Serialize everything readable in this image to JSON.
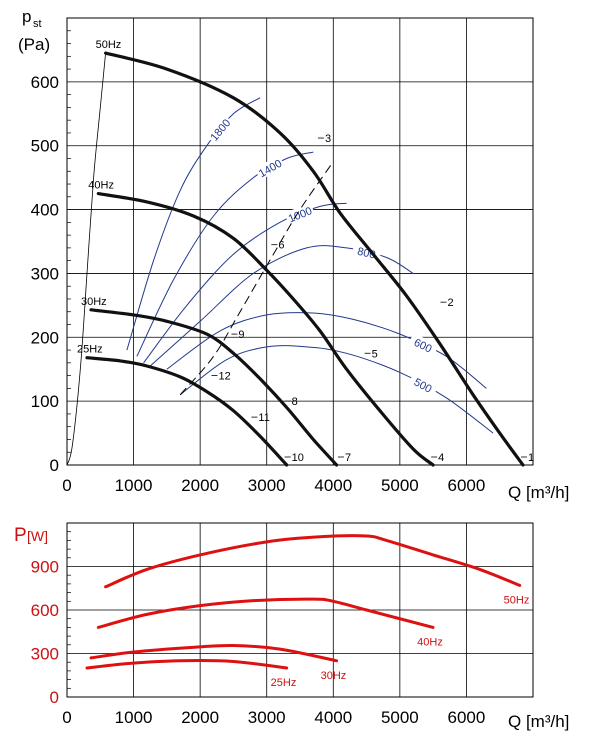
{
  "chart_data": [
    {
      "type": "line",
      "ylabel_main": "p",
      "ylabel_sub": "st",
      "ylabel_unit": "(Pa)",
      "xlabel": "Q [m³/h]",
      "xlim": [
        0,
        7000
      ],
      "ylim": [
        0,
        700
      ],
      "x_ticks": [
        "0",
        "1000",
        "2000",
        "3000",
        "4000",
        "5000",
        "6000"
      ],
      "y_ticks": [
        "0",
        "100",
        "200",
        "300",
        "400",
        "500",
        "600"
      ],
      "y_tick_values": [
        0,
        100,
        200,
        300,
        400,
        500,
        600
      ],
      "x_tick_values": [
        0,
        1000,
        2000,
        3000,
        4000,
        5000,
        6000
      ],
      "grid": true,
      "fan_curves": [
        {
          "name": "50Hz",
          "x": [
            580,
            1500,
            2500,
            3200,
            3700,
            4100,
            4600,
            5100,
            5600,
            6100,
            6500,
            6850
          ],
          "y": [
            645,
            620,
            575,
            520,
            460,
            395,
            330,
            265,
            190,
            110,
            50,
            0
          ]
        },
        {
          "name": "40Hz",
          "x": [
            470,
            1200,
            1900,
            2500,
            3000,
            3400,
            3800,
            4200,
            4700,
            5200,
            5500
          ],
          "y": [
            425,
            412,
            390,
            355,
            305,
            260,
            210,
            150,
            85,
            25,
            0
          ]
        },
        {
          "name": "30Hz",
          "x": [
            360,
            1000,
            1500,
            2100,
            2500,
            2900,
            3300,
            3700,
            4050
          ],
          "y": [
            243,
            235,
            225,
            205,
            175,
            135,
            90,
            40,
            0
          ]
        },
        {
          "name": "25Hz",
          "x": [
            300,
            800,
            1200,
            1700,
            2100,
            2500,
            2900,
            3300
          ],
          "y": [
            168,
            163,
            155,
            138,
            115,
            85,
            45,
            0
          ]
        }
      ],
      "system_curve_left": {
        "x": [
          0,
          80,
          200,
          300,
          400,
          500,
          580
        ],
        "y": [
          0,
          30,
          150,
          300,
          450,
          560,
          645
        ]
      },
      "system_curve_dashed": {
        "x": [
          1700,
          2200,
          2600,
          3100,
          3500,
          4000
        ],
        "y": [
          110,
          170,
          240,
          330,
          400,
          475
        ]
      },
      "iso_curves": [
        {
          "label": "1800",
          "x": [
            900,
            1300,
            1700,
            2100,
            2500,
            2900
          ],
          "y": [
            180,
            320,
            430,
            500,
            550,
            575
          ]
        },
        {
          "label": "1400",
          "x": [
            1050,
            1600,
            2200,
            2800,
            3300,
            3700
          ],
          "y": [
            170,
            290,
            390,
            450,
            480,
            490
          ]
        },
        {
          "label": "1000",
          "x": [
            1150,
            1800,
            2500,
            3200,
            3800,
            4200
          ],
          "y": [
            160,
            250,
            330,
            380,
            405,
            410
          ]
        },
        {
          "label": "800",
          "x": [
            1250,
            2000,
            2800,
            3600,
            4200,
            4800,
            5200
          ],
          "y": [
            155,
            225,
            300,
            340,
            340,
            325,
            300
          ]
        },
        {
          "label": "600",
          "x": [
            1500,
            2300,
            3000,
            3700,
            4300,
            5000,
            5700,
            6300
          ],
          "y": [
            150,
            210,
            235,
            238,
            228,
            205,
            170,
            120
          ]
        },
        {
          "label": "500",
          "x": [
            1700,
            2400,
            3000,
            3600,
            4200,
            5000,
            5700,
            6400
          ],
          "y": [
            110,
            165,
            185,
            185,
            175,
            145,
            105,
            50
          ]
        }
      ],
      "point_labels": [
        {
          "label": "1",
          "x": 6850,
          "y": 0
        },
        {
          "label": "2",
          "x": 5640,
          "y": 255
        },
        {
          "label": "3",
          "x": 3800,
          "y": 512
        },
        {
          "label": "4",
          "x": 5500,
          "y": 0
        },
        {
          "label": "5",
          "x": 4500,
          "y": 175
        },
        {
          "label": "6",
          "x": 3100,
          "y": 345
        },
        {
          "label": "7",
          "x": 4100,
          "y": 0
        },
        {
          "label": "8",
          "x": 3300,
          "y": 100
        },
        {
          "label": "9",
          "x": 2500,
          "y": 205
        },
        {
          "label": "10",
          "x": 3300,
          "y": 0
        },
        {
          "label": "11",
          "x": 2800,
          "y": 75
        },
        {
          "label": "12",
          "x": 2200,
          "y": 140
        }
      ],
      "colors": {
        "fan_curve": "#111111",
        "iso_curve": "#223a8c",
        "grid": "#000000"
      }
    },
    {
      "type": "line",
      "ylabel_main": "P",
      "ylabel_unit": "[W]",
      "xlabel": "Q [m³/h]",
      "xlim": [
        0,
        7000
      ],
      "ylim": [
        0,
        1200
      ],
      "x_ticks": [
        "0",
        "1000",
        "2000",
        "3000",
        "4000",
        "5000",
        "6000"
      ],
      "y_ticks": [
        "0",
        "300",
        "600",
        "900"
      ],
      "y_tick_values": [
        0,
        300,
        600,
        900
      ],
      "x_tick_values": [
        0,
        1000,
        2000,
        3000,
        4000,
        5000,
        6000
      ],
      "grid": true,
      "series": [
        {
          "name": "50Hz",
          "x": [
            580,
            1200,
            2000,
            3000,
            3800,
            4500,
            4800,
            5500,
            6200,
            6800
          ],
          "y": [
            760,
            880,
            980,
            1070,
            1105,
            1110,
            1080,
            980,
            880,
            770
          ]
        },
        {
          "name": "40Hz",
          "x": [
            470,
            1200,
            2000,
            2800,
            3700,
            4000,
            4500,
            5500
          ],
          "y": [
            480,
            570,
            630,
            665,
            675,
            660,
            600,
            480
          ]
        },
        {
          "name": "30Hz",
          "x": [
            360,
            1000,
            1800,
            2500,
            3200,
            4050
          ],
          "y": [
            270,
            310,
            340,
            355,
            330,
            250
          ]
        },
        {
          "name": "25Hz",
          "x": [
            300,
            900,
            1700,
            2500,
            3300
          ],
          "y": [
            200,
            230,
            250,
            245,
            200
          ]
        }
      ],
      "colors": {
        "series": "#dd1111",
        "tick": "#cc1111"
      }
    }
  ]
}
